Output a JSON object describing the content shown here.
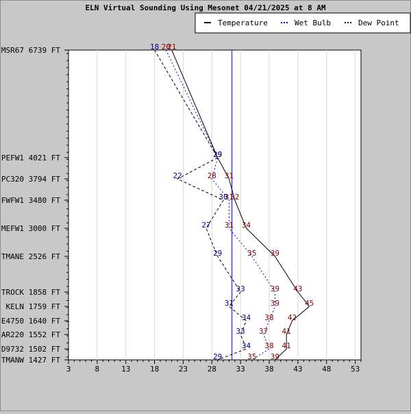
{
  "chart_data": {
    "type": "line",
    "title": "ELN Virtual Sounding Using Mesonet 04/21/2025 at 8 AM",
    "xlim": [
      3,
      54
    ],
    "x_ticks": [
      3,
      8,
      13,
      18,
      23,
      28,
      33,
      38,
      43,
      48,
      53
    ],
    "reference_line_x": 31.5,
    "grid": "vertical",
    "legend_position": "top-right",
    "levels": [
      {
        "label": "MSR67 6739 FT",
        "elev": 6739
      },
      {
        "label": "PEFW1 4021 FT",
        "elev": 4021
      },
      {
        "label": "PC320 3794 FT",
        "elev": 3794
      },
      {
        "label": "FWFW1 3480 FT",
        "elev": 3480
      },
      {
        "label": "MEFW1 3000 FT",
        "elev": 3000
      },
      {
        "label": "TMANE 2526 FT",
        "elev": 2526
      },
      {
        "label": "TROCK 1858 FT",
        "elev": 1858
      },
      {
        "label": "KELN 1759 FT",
        "elev": 1759
      },
      {
        "label": "E4750 1640 FT",
        "elev": 1640
      },
      {
        "label": "AR220 1552 FT",
        "elev": 1552
      },
      {
        "label": "D9732 1502 FT",
        "elev": 1502
      },
      {
        "label": "TMANW 1427 FT",
        "elev": 1427
      }
    ],
    "series": [
      {
        "name": "Temperature",
        "color": "#000000",
        "label_color": "#8b0000",
        "dash": "",
        "values": [
          21,
          29,
          31,
          32,
          34,
          39,
          43,
          45,
          42,
          41,
          41,
          39
        ]
      },
      {
        "name": "Wet Bulb",
        "color": "#0000cc",
        "label_color": "#8b0000",
        "dash": "2,3",
        "values": [
          20,
          29,
          28,
          31,
          31,
          35,
          39,
          39,
          38,
          37,
          38,
          35
        ]
      },
      {
        "name": "Dew Point",
        "color": "#000000",
        "label_color": "#00008b",
        "dash": "4,3",
        "values": [
          18,
          29,
          22,
          30,
          27,
          29,
          33,
          31,
          34,
          33,
          34,
          29
        ]
      }
    ]
  }
}
